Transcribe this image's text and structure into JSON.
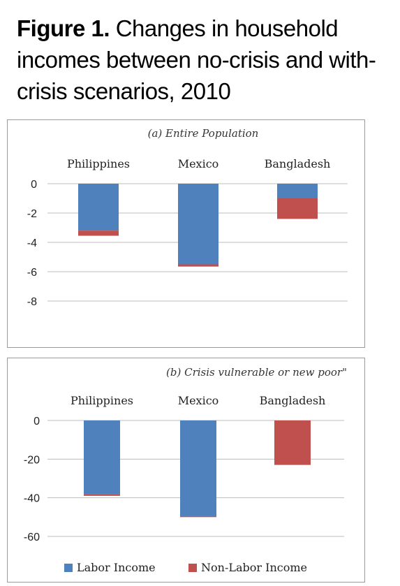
{
  "figure": {
    "label": "Figure 1.",
    "title": "Changes in household incomes between no-crisis and with-crisis scenarios, 2010"
  },
  "colors": {
    "labor": "#4f81bd",
    "nonlabor": "#c0504d"
  },
  "chart_data": [
    {
      "type": "bar",
      "stacked": true,
      "title": "(a) Entire Population",
      "categories": [
        "Philippines",
        "Mexico",
        "Bangladesh"
      ],
      "series": [
        {
          "name": "Labor Income",
          "values": [
            -3.2,
            -5.5,
            -1.0
          ]
        },
        {
          "name": "Non-Labor Income",
          "values": [
            -0.35,
            -0.15,
            -1.4
          ]
        }
      ],
      "yticks": [
        0,
        -2,
        -4,
        -6,
        -8
      ],
      "ylim": [
        -8,
        0
      ],
      "grid": true,
      "legend": false
    },
    {
      "type": "bar",
      "stacked": true,
      "title": "(b) Crisis vulnerable or new poor\"",
      "categories": [
        "Philippines",
        "Mexico",
        "Bangladesh"
      ],
      "series": [
        {
          "name": "Labor Income",
          "values": [
            -38,
            -49.5,
            0
          ]
        },
        {
          "name": "Non-Labor Income",
          "values": [
            -1,
            -0.5,
            -23
          ]
        }
      ],
      "yticks": [
        0,
        -20,
        -40,
        -60
      ],
      "ylim": [
        -60,
        0
      ],
      "grid": true,
      "legend": "bottom"
    }
  ]
}
